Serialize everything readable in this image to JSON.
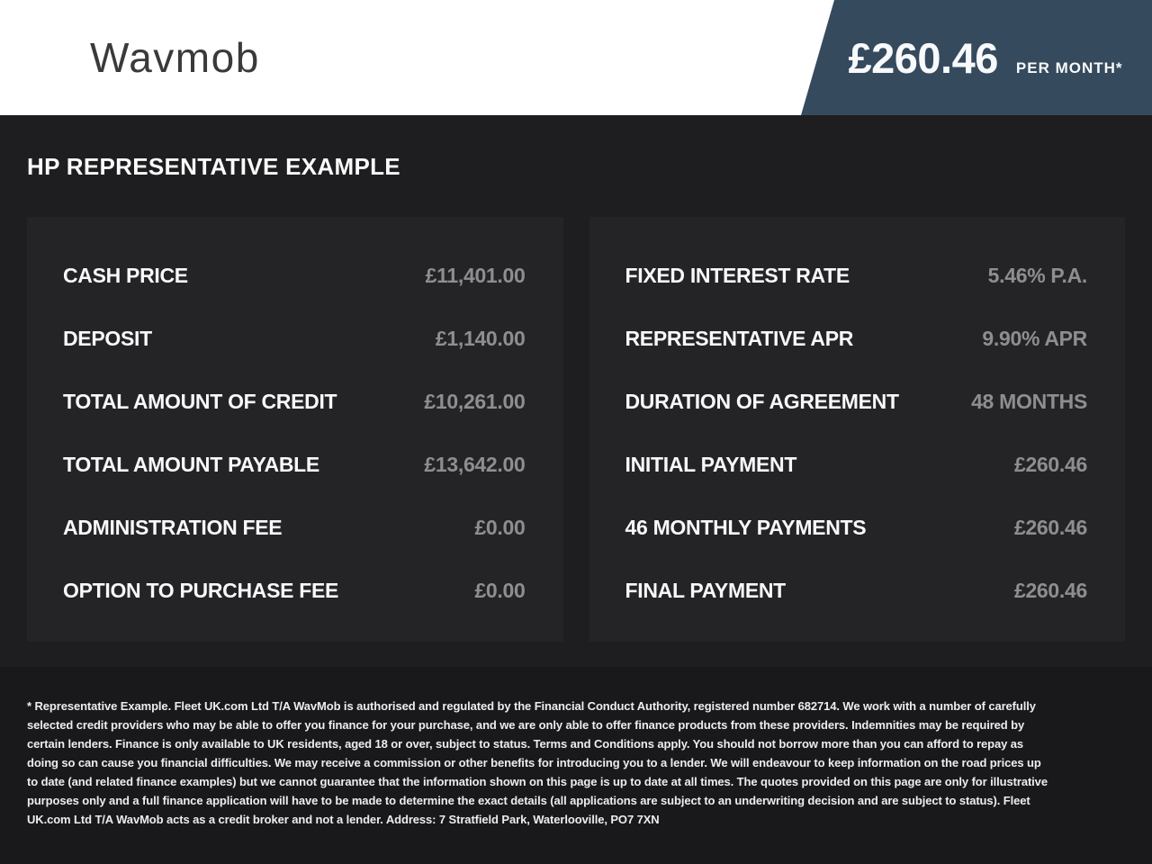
{
  "header": {
    "logo": "Wavmob",
    "price": "£260.46",
    "price_suffix": "PER MONTH*"
  },
  "main": {
    "title": "HP REPRESENTATIVE EXAMPLE",
    "panels": [
      {
        "rows": [
          {
            "label": "CASH PRICE",
            "value": "£11,401.00"
          },
          {
            "label": "DEPOSIT",
            "value": "£1,140.00"
          },
          {
            "label": "TOTAL AMOUNT OF CREDIT",
            "value": "£10,261.00"
          },
          {
            "label": "TOTAL AMOUNT PAYABLE",
            "value": "£13,642.00"
          },
          {
            "label": "ADMINISTRATION FEE",
            "value": "£0.00"
          },
          {
            "label": "OPTION TO PURCHASE FEE",
            "value": "£0.00"
          }
        ]
      },
      {
        "rows": [
          {
            "label": "FIXED INTEREST RATE",
            "value": "5.46% P.A."
          },
          {
            "label": "REPRESENTATIVE APR",
            "value": "9.90% APR"
          },
          {
            "label": "DURATION OF AGREEMENT",
            "value": "48 MONTHS"
          },
          {
            "label": "INITIAL PAYMENT",
            "value": "£260.46"
          },
          {
            "label": "46 MONTHLY PAYMENTS",
            "value": "£260.46"
          },
          {
            "label": "FINAL PAYMENT",
            "value": "£260.46"
          }
        ]
      }
    ]
  },
  "footer": {
    "disclaimer": "* Representative Example. Fleet UK.com Ltd T/A WavMob is authorised and regulated by the Financial Conduct Authority, registered number 682714. We work with a number of carefully selected credit providers who may be able to offer you finance for your purchase, and we are only able to offer finance products from these providers. Indemnities may be required by certain lenders. Finance is only available to UK residents, aged 18 or over, subject to status. Terms and Conditions apply. You should not borrow more than you can afford to repay as doing so can cause you financial difficulties. We may receive a commission or other benefits for introducing you to a lender. We will endeavour to keep information on the road prices up to date (and related finance examples) but we cannot guarantee that the information shown on this page is up to date at all times. The quotes provided on this page are only for illustrative purposes only and a full finance application will have to be made to determine the exact details (all applications are subject to an underwriting decision and are subject to status). Fleet UK.com Ltd T/A WavMob acts as a credit broker and not a lender. Address: 7 Stratfield Park, Waterlooville, PO7 7XN"
  },
  "colors": {
    "banner_bg": "#364a5e",
    "page_bg": "#1e1e20",
    "panel_bg": "#242427",
    "footer_bg": "#19191b",
    "value_text": "#8e8e8e"
  }
}
